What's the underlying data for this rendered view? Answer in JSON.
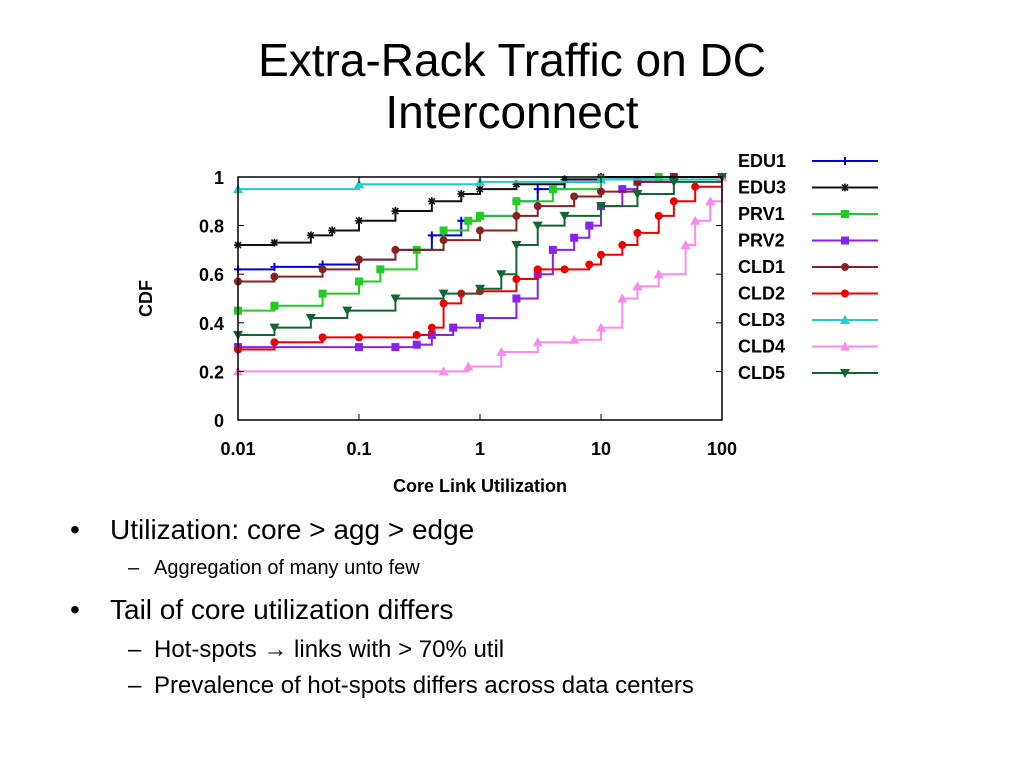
{
  "slide": {
    "title_line1": "Extra-Rack Traffic on DC",
    "title_line2": "Interconnect",
    "bullets": [
      {
        "text": "Utilization: core > agg > edge",
        "sub": [
          "Aggregation of many unto few"
        ]
      },
      {
        "text": "Tail of core utilization differs",
        "sub": [
          "Hot-spots → links with > 70% util",
          "Prevalence of hot-spots differs across data centers"
        ]
      }
    ]
  },
  "chart_data": {
    "type": "line",
    "xlabel": "Core Link Utilization",
    "ylabel": "CDF",
    "xscale": "log",
    "xlim": [
      0.01,
      100
    ],
    "ylim": [
      0,
      1
    ],
    "xticks": [
      0.01,
      0.1,
      1,
      10,
      100
    ],
    "xtick_labels": [
      "0.01",
      "0.1",
      "1",
      "10",
      "100"
    ],
    "yticks": [
      0,
      0.2,
      0.4,
      0.6,
      0.8,
      1
    ],
    "ytick_labels": [
      "0",
      "0.2",
      "0.4",
      "0.6",
      "0.8",
      "1"
    ],
    "legend_position": "right",
    "series": [
      {
        "name": "EDU1",
        "color": "#0000dd",
        "marker": "plus",
        "points": [
          [
            0.01,
            0.62
          ],
          [
            0.02,
            0.63
          ],
          [
            0.05,
            0.64
          ],
          [
            0.1,
            0.66
          ],
          [
            0.2,
            0.7
          ],
          [
            0.4,
            0.76
          ],
          [
            0.7,
            0.82
          ],
          [
            1,
            0.84
          ],
          [
            2,
            0.9
          ],
          [
            3,
            0.95
          ],
          [
            5,
            0.98
          ],
          [
            10,
            0.99
          ],
          [
            30,
            1
          ],
          [
            100,
            1
          ]
        ]
      },
      {
        "name": "EDU3",
        "color": "#111111",
        "marker": "star",
        "points": [
          [
            0.01,
            0.72
          ],
          [
            0.02,
            0.73
          ],
          [
            0.04,
            0.76
          ],
          [
            0.06,
            0.78
          ],
          [
            0.1,
            0.82
          ],
          [
            0.2,
            0.86
          ],
          [
            0.4,
            0.9
          ],
          [
            0.7,
            0.93
          ],
          [
            1,
            0.95
          ],
          [
            2,
            0.97
          ],
          [
            5,
            0.99
          ],
          [
            10,
            1
          ],
          [
            100,
            1
          ]
        ]
      },
      {
        "name": "PRV1",
        "color": "#22cc22",
        "marker": "square",
        "points": [
          [
            0.01,
            0.45
          ],
          [
            0.02,
            0.47
          ],
          [
            0.05,
            0.52
          ],
          [
            0.1,
            0.57
          ],
          [
            0.15,
            0.62
          ],
          [
            0.3,
            0.7
          ],
          [
            0.5,
            0.78
          ],
          [
            0.8,
            0.82
          ],
          [
            1,
            0.84
          ],
          [
            2,
            0.9
          ],
          [
            4,
            0.95
          ],
          [
            10,
            0.99
          ],
          [
            30,
            1
          ],
          [
            100,
            1
          ]
        ]
      },
      {
        "name": "PRV2",
        "color": "#8822ee",
        "marker": "square",
        "points": [
          [
            0.01,
            0.3
          ],
          [
            0.1,
            0.3
          ],
          [
            0.2,
            0.3
          ],
          [
            0.3,
            0.31
          ],
          [
            0.4,
            0.35
          ],
          [
            0.6,
            0.38
          ],
          [
            1,
            0.42
          ],
          [
            2,
            0.5
          ],
          [
            3,
            0.6
          ],
          [
            4,
            0.7
          ],
          [
            6,
            0.75
          ],
          [
            8,
            0.8
          ],
          [
            10,
            0.88
          ],
          [
            15,
            0.95
          ],
          [
            20,
            0.98
          ],
          [
            40,
            1
          ],
          [
            100,
            1
          ]
        ]
      },
      {
        "name": "CLD1",
        "color": "#882222",
        "marker": "circle",
        "points": [
          [
            0.01,
            0.57
          ],
          [
            0.02,
            0.59
          ],
          [
            0.05,
            0.62
          ],
          [
            0.1,
            0.66
          ],
          [
            0.2,
            0.7
          ],
          [
            0.5,
            0.74
          ],
          [
            1,
            0.78
          ],
          [
            2,
            0.84
          ],
          [
            3,
            0.88
          ],
          [
            6,
            0.92
          ],
          [
            10,
            0.94
          ],
          [
            20,
            0.98
          ],
          [
            40,
            1
          ],
          [
            100,
            1
          ]
        ]
      },
      {
        "name": "CLD2",
        "color": "#ee0000",
        "marker": "circle",
        "points": [
          [
            0.01,
            0.29
          ],
          [
            0.02,
            0.32
          ],
          [
            0.05,
            0.34
          ],
          [
            0.1,
            0.34
          ],
          [
            0.3,
            0.35
          ],
          [
            0.4,
            0.38
          ],
          [
            0.5,
            0.48
          ],
          [
            0.7,
            0.52
          ],
          [
            1,
            0.53
          ],
          [
            2,
            0.58
          ],
          [
            3,
            0.62
          ],
          [
            5,
            0.62
          ],
          [
            8,
            0.64
          ],
          [
            10,
            0.68
          ],
          [
            15,
            0.72
          ],
          [
            20,
            0.77
          ],
          [
            30,
            0.84
          ],
          [
            40,
            0.9
          ],
          [
            60,
            0.96
          ],
          [
            100,
            1
          ]
        ]
      },
      {
        "name": "CLD3",
        "color": "#22cccc",
        "marker": "triangle",
        "points": [
          [
            0.01,
            0.95
          ],
          [
            0.1,
            0.97
          ],
          [
            1,
            0.98
          ],
          [
            10,
            0.99
          ],
          [
            100,
            1
          ]
        ]
      },
      {
        "name": "CLD4",
        "color": "#ff88ee",
        "marker": "triangle",
        "points": [
          [
            0.01,
            0.2
          ],
          [
            0.5,
            0.2
          ],
          [
            0.8,
            0.22
          ],
          [
            1.5,
            0.28
          ],
          [
            3,
            0.32
          ],
          [
            6,
            0.33
          ],
          [
            10,
            0.38
          ],
          [
            15,
            0.5
          ],
          [
            20,
            0.55
          ],
          [
            30,
            0.6
          ],
          [
            50,
            0.72
          ],
          [
            60,
            0.82
          ],
          [
            80,
            0.9
          ],
          [
            100,
            1
          ]
        ]
      },
      {
        "name": "CLD5",
        "color": "#116633",
        "marker": "triangle-down",
        "points": [
          [
            0.01,
            0.35
          ],
          [
            0.02,
            0.38
          ],
          [
            0.04,
            0.42
          ],
          [
            0.08,
            0.45
          ],
          [
            0.2,
            0.5
          ],
          [
            0.5,
            0.52
          ],
          [
            1,
            0.54
          ],
          [
            1.5,
            0.6
          ],
          [
            2,
            0.72
          ],
          [
            3,
            0.8
          ],
          [
            5,
            0.84
          ],
          [
            10,
            0.88
          ],
          [
            20,
            0.93
          ],
          [
            40,
            0.98
          ],
          [
            100,
            1
          ]
        ]
      }
    ]
  }
}
